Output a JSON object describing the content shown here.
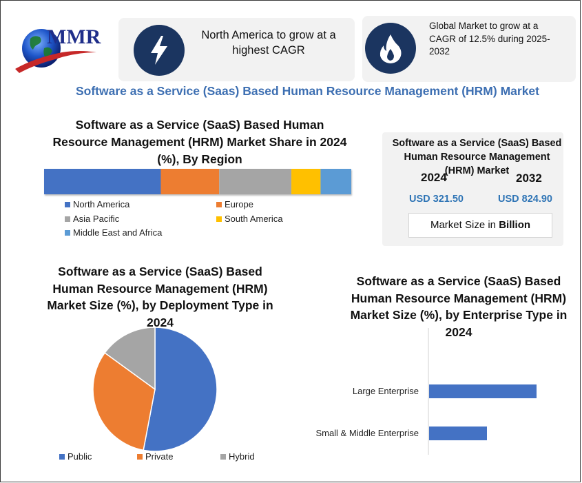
{
  "logo": {
    "text": "MMR"
  },
  "info_boxes": [
    {
      "icon": "lightning-icon",
      "text": "North America to grow at a highest CAGR"
    },
    {
      "icon": "flame-icon",
      "text": "Global Market to grow at a CAGR of 12.5% during 2025-2032"
    }
  ],
  "main_title": "Software as a Service (Saas) Based Human Resource Management (HRM) Market",
  "market_size": {
    "title": "Software as a Service (SaaS) Based Human Resource Management (HRM) Market",
    "year1": "2024",
    "year2": "2032",
    "value1": "USD 321.50",
    "value2": "USD 824.90",
    "unit_prefix": "Market Size in",
    "unit_bold": "Billion"
  },
  "colors": {
    "blue": "#4472c4",
    "orange": "#ed7d31",
    "gray": "#a5a5a5",
    "yellow": "#ffc000",
    "lightblue": "#5b9bd5",
    "navy": "#1b3560",
    "title_blue": "#3d6fb2"
  },
  "chart_data": [
    {
      "type": "bar",
      "orientation": "stacked-horizontal",
      "title": "Software as a Service (SaaS) Based Human Resource Management (HRM) Market Share in 2024 (%), By Region",
      "series": [
        {
          "name": "North America",
          "value": 38
        },
        {
          "name": "Europe",
          "value": 19
        },
        {
          "name": "Asia Pacific",
          "value": 23.5
        },
        {
          "name": "South America",
          "value": 9.5
        },
        {
          "name": "Middle East and Africa",
          "value": 10
        }
      ],
      "legend": "bottom"
    },
    {
      "type": "pie",
      "title": "Software as a Service (SaaS) Based Human Resource Management (HRM) Market Size (%), by Deployment Type in 2024",
      "slices": [
        {
          "name": "Public",
          "value": 53
        },
        {
          "name": "Private",
          "value": 32
        },
        {
          "name": "Hybrid",
          "value": 15
        }
      ],
      "legend": "bottom"
    },
    {
      "type": "bar",
      "orientation": "horizontal",
      "title": "Software as a Service (SaaS) Based Human Resource Management (HRM) Market Size (%), by Enterprise Type in 2024",
      "categories": [
        "Large Enterprise",
        "Small & Middle Enterprise"
      ],
      "values": [
        65,
        35
      ],
      "xlim": [
        0,
        100
      ]
    }
  ]
}
